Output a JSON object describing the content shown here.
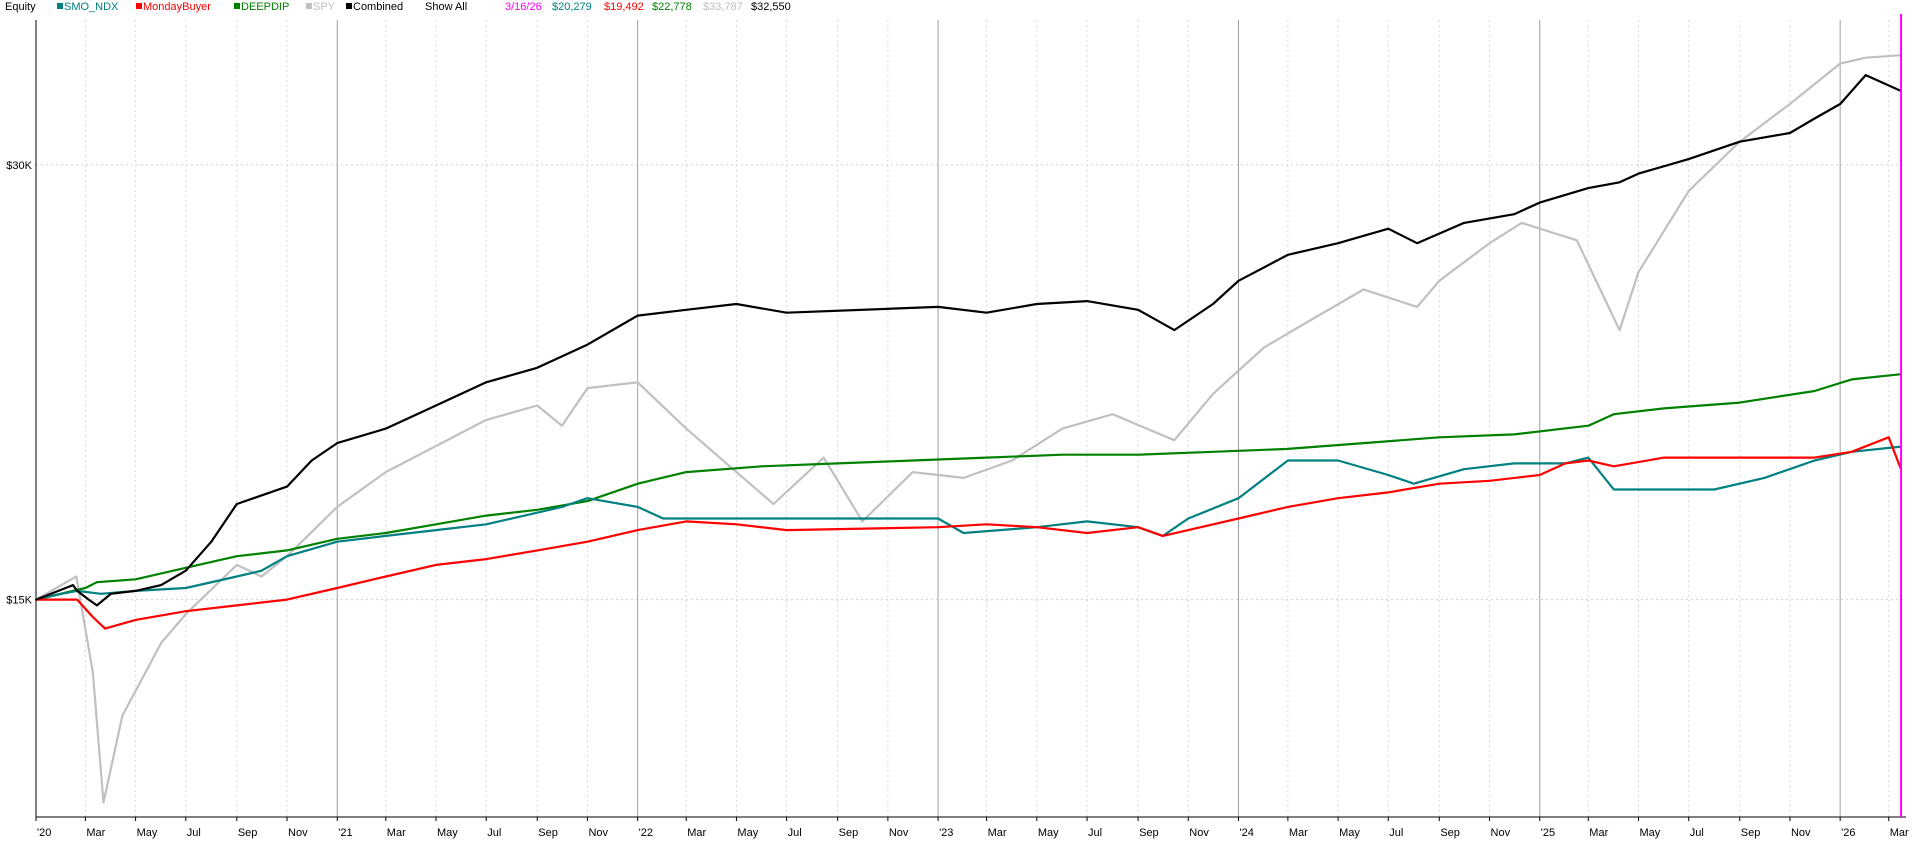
{
  "legend": {
    "title": "Equity",
    "show_all": "Show All",
    "cursor_date": "3/16/26",
    "cursor_values": [
      "$20,279",
      "$19,492",
      "$22,778",
      "$33,787",
      "$32,550"
    ]
  },
  "colors": {
    "SMO_NDX": "#008080",
    "MondayBuyer": "#ff0000",
    "DEEPDIP": "#008000",
    "SPY": "#c0c0c0",
    "Combined": "#000000",
    "cursor": "#ff00ff"
  },
  "chart_data": {
    "type": "line",
    "title": "",
    "xlabel": "",
    "ylabel": "",
    "ylim": [
      7500,
      35000
    ],
    "xlim": [
      "2020-01-01",
      "2026-03-22"
    ],
    "grid": true,
    "legend_position": "top-left",
    "y_ticks": [
      {
        "value": 15000,
        "label": "$15K"
      },
      {
        "value": 30000,
        "label": "$30K"
      }
    ],
    "x_ticks": [
      {
        "date": "2020-01-01",
        "label": "'20"
      },
      {
        "date": "2020-03-01",
        "label": "Mar"
      },
      {
        "date": "2020-05-01",
        "label": "May"
      },
      {
        "date": "2020-07-01",
        "label": "Jul"
      },
      {
        "date": "2020-09-01",
        "label": "Sep"
      },
      {
        "date": "2020-11-01",
        "label": "Nov"
      },
      {
        "date": "2021-01-01",
        "label": "'21"
      },
      {
        "date": "2021-03-01",
        "label": "Mar"
      },
      {
        "date": "2021-05-01",
        "label": "May"
      },
      {
        "date": "2021-07-01",
        "label": "Jul"
      },
      {
        "date": "2021-09-01",
        "label": "Sep"
      },
      {
        "date": "2021-11-01",
        "label": "Nov"
      },
      {
        "date": "2022-01-01",
        "label": "'22"
      },
      {
        "date": "2022-03-01",
        "label": "Mar"
      },
      {
        "date": "2022-05-01",
        "label": "May"
      },
      {
        "date": "2022-07-01",
        "label": "Jul"
      },
      {
        "date": "2022-09-01",
        "label": "Sep"
      },
      {
        "date": "2022-11-01",
        "label": "Nov"
      },
      {
        "date": "2023-01-01",
        "label": "'23"
      },
      {
        "date": "2023-03-01",
        "label": "Mar"
      },
      {
        "date": "2023-05-01",
        "label": "May"
      },
      {
        "date": "2023-07-01",
        "label": "Jul"
      },
      {
        "date": "2023-09-01",
        "label": "Sep"
      },
      {
        "date": "2023-11-01",
        "label": "Nov"
      },
      {
        "date": "2024-01-01",
        "label": "'24"
      },
      {
        "date": "2024-03-01",
        "label": "Mar"
      },
      {
        "date": "2024-05-01",
        "label": "May"
      },
      {
        "date": "2024-07-01",
        "label": "Jul"
      },
      {
        "date": "2024-09-01",
        "label": "Sep"
      },
      {
        "date": "2024-11-01",
        "label": "Nov"
      },
      {
        "date": "2025-01-01",
        "label": "'25"
      },
      {
        "date": "2025-03-01",
        "label": "Mar"
      },
      {
        "date": "2025-05-01",
        "label": "May"
      },
      {
        "date": "2025-07-01",
        "label": "Jul"
      },
      {
        "date": "2025-09-01",
        "label": "Sep"
      },
      {
        "date": "2025-11-01",
        "label": "Nov"
      },
      {
        "date": "2026-01-01",
        "label": "'26"
      },
      {
        "date": "2026-03-01",
        "label": "Mar"
      }
    ],
    "cursor_date": "2026-03-16",
    "series": [
      {
        "name": "SMO_NDX",
        "color": "#008080",
        "x": [
          "2020-01-01",
          "2020-02-01",
          "2020-02-20",
          "2020-03-20",
          "2020-05-01",
          "2020-07-01",
          "2020-09-01",
          "2020-10-01",
          "2020-11-01",
          "2021-01-01",
          "2021-03-01",
          "2021-05-01",
          "2021-07-01",
          "2021-09-01",
          "2021-10-01",
          "2021-11-01",
          "2022-01-01",
          "2022-02-01",
          "2023-01-01",
          "2023-02-01",
          "2023-05-01",
          "2023-07-01",
          "2023-09-01",
          "2023-10-01",
          "2023-11-01",
          "2024-01-01",
          "2024-03-01",
          "2024-05-01",
          "2024-07-01",
          "2024-08-01",
          "2024-10-01",
          "2024-12-01",
          "2025-02-01",
          "2025-03-01",
          "2025-04-01",
          "2025-08-01",
          "2025-10-01",
          "2025-12-01",
          "2026-01-15",
          "2026-03-16"
        ],
        "y": [
          15000,
          15200,
          15300,
          15200,
          15300,
          15400,
          15800,
          16000,
          16500,
          17000,
          17200,
          17400,
          17600,
          18000,
          18200,
          18500,
          18200,
          17800,
          17800,
          17300,
          17500,
          17700,
          17500,
          17200,
          17800,
          18500,
          19800,
          19800,
          19300,
          19000,
          19500,
          19700,
          19700,
          19900,
          18800,
          18800,
          19200,
          19800,
          20100,
          20279
        ]
      },
      {
        "name": "MondayBuyer",
        "color": "#ff0000",
        "x": [
          "2020-01-01",
          "2020-02-20",
          "2020-03-10",
          "2020-03-25",
          "2020-05-01",
          "2020-07-01",
          "2020-09-01",
          "2020-11-01",
          "2021-01-01",
          "2021-03-01",
          "2021-05-01",
          "2021-07-01",
          "2021-09-01",
          "2021-11-01",
          "2022-01-01",
          "2022-03-01",
          "2022-05-01",
          "2022-07-01",
          "2023-01-01",
          "2023-03-01",
          "2023-05-01",
          "2023-07-01",
          "2023-09-01",
          "2023-10-01",
          "2023-11-01",
          "2024-01-01",
          "2024-03-01",
          "2024-05-01",
          "2024-07-01",
          "2024-09-01",
          "2024-11-01",
          "2025-01-01",
          "2025-02-01",
          "2025-03-01",
          "2025-04-01",
          "2025-06-01",
          "2025-09-01",
          "2025-12-01",
          "2026-01-15",
          "2026-03-01",
          "2026-03-16"
        ],
        "y": [
          15000,
          15000,
          14400,
          14000,
          14300,
          14600,
          14800,
          15000,
          15400,
          15800,
          16200,
          16400,
          16700,
          17000,
          17400,
          17700,
          17600,
          17400,
          17500,
          17600,
          17500,
          17300,
          17500,
          17200,
          17400,
          17800,
          18200,
          18500,
          18700,
          19000,
          19100,
          19300,
          19700,
          19800,
          19600,
          19900,
          19900,
          19900,
          20100,
          20600,
          19492
        ]
      },
      {
        "name": "DEEPDIP",
        "color": "#008000",
        "x": [
          "2020-01-01",
          "2020-03-01",
          "2020-03-15",
          "2020-05-01",
          "2020-07-01",
          "2020-09-01",
          "2020-11-01",
          "2021-01-01",
          "2021-03-01",
          "2021-05-01",
          "2021-07-01",
          "2021-09-01",
          "2021-11-01",
          "2022-01-01",
          "2022-03-01",
          "2022-06-01",
          "2022-09-01",
          "2022-12-01",
          "2023-03-01",
          "2023-06-01",
          "2023-09-01",
          "2023-12-01",
          "2024-03-01",
          "2024-06-01",
          "2024-09-01",
          "2024-12-01",
          "2025-03-01",
          "2025-04-01",
          "2025-06-01",
          "2025-09-01",
          "2025-12-01",
          "2026-01-15",
          "2026-03-16"
        ],
        "y": [
          15000,
          15400,
          15600,
          15700,
          16100,
          16500,
          16700,
          17100,
          17300,
          17600,
          17900,
          18100,
          18400,
          19000,
          19400,
          19600,
          19700,
          19800,
          19900,
          20000,
          20000,
          20100,
          20200,
          20400,
          20600,
          20700,
          21000,
          21400,
          21600,
          21800,
          22200,
          22600,
          22778
        ]
      },
      {
        "name": "SPY",
        "color": "#c0c0c0",
        "x": [
          "2020-01-01",
          "2020-02-19",
          "2020-03-10",
          "2020-03-23",
          "2020-04-15",
          "2020-06-01",
          "2020-07-01",
          "2020-09-01",
          "2020-10-01",
          "2020-11-01",
          "2021-01-01",
          "2021-03-01",
          "2021-05-01",
          "2021-07-01",
          "2021-09-01",
          "2021-10-01",
          "2021-11-01",
          "2022-01-01",
          "2022-03-01",
          "2022-05-01",
          "2022-06-15",
          "2022-08-15",
          "2022-10-01",
          "2022-12-01",
          "2023-02-01",
          "2023-04-01",
          "2023-06-01",
          "2023-08-01",
          "2023-10-15",
          "2023-12-01",
          "2024-02-01",
          "2024-04-01",
          "2024-06-01",
          "2024-08-05",
          "2024-09-01",
          "2024-11-01",
          "2024-12-10",
          "2025-02-15",
          "2025-04-08",
          "2025-05-01",
          "2025-07-01",
          "2025-09-01",
          "2025-11-01",
          "2026-01-01",
          "2026-02-01",
          "2026-03-16"
        ],
        "y": [
          15000,
          15800,
          12500,
          8000,
          11000,
          13500,
          14500,
          16200,
          15800,
          16500,
          18200,
          19400,
          20300,
          21200,
          21700,
          21000,
          22300,
          22500,
          20900,
          19400,
          18300,
          19900,
          17700,
          19400,
          19200,
          19800,
          20900,
          21400,
          20500,
          22100,
          23700,
          24700,
          25700,
          25100,
          26000,
          27300,
          28000,
          27400,
          24300,
          26300,
          29100,
          30800,
          32100,
          33500,
          33700,
          33787
        ]
      },
      {
        "name": "Combined",
        "color": "#000000",
        "x": [
          "2020-01-01",
          "2020-02-15",
          "2020-02-20",
          "2020-03-05",
          "2020-03-15",
          "2020-04-01",
          "2020-05-01",
          "2020-06-01",
          "2020-07-01",
          "2020-08-01",
          "2020-09-01",
          "2020-11-01",
          "2020-12-01",
          "2021-01-01",
          "2021-03-01",
          "2021-05-01",
          "2021-07-01",
          "2021-09-01",
          "2021-11-01",
          "2022-01-01",
          "2022-03-01",
          "2022-05-01",
          "2022-07-01",
          "2023-01-01",
          "2023-03-01",
          "2023-05-01",
          "2023-07-01",
          "2023-09-01",
          "2023-10-15",
          "2023-12-01",
          "2024-01-01",
          "2024-03-01",
          "2024-05-01",
          "2024-07-01",
          "2024-08-05",
          "2024-10-01",
          "2024-12-01",
          "2025-01-01",
          "2025-03-01",
          "2025-04-08",
          "2025-05-01",
          "2025-07-01",
          "2025-09-01",
          "2025-11-01",
          "2025-12-01",
          "2026-01-01",
          "2026-02-01",
          "2026-03-16"
        ],
        "y": [
          15000,
          15500,
          15300,
          15000,
          14800,
          15200,
          15300,
          15500,
          16000,
          17000,
          18300,
          18900,
          19800,
          20400,
          20900,
          21700,
          22500,
          23000,
          23800,
          24800,
          25000,
          25200,
          24900,
          25100,
          24900,
          25200,
          25300,
          25000,
          24300,
          25200,
          26000,
          26900,
          27300,
          27800,
          27300,
          28000,
          28300,
          28700,
          29200,
          29400,
          29700,
          30200,
          30800,
          31100,
          31600,
          32100,
          33100,
          32550
        ]
      }
    ]
  }
}
